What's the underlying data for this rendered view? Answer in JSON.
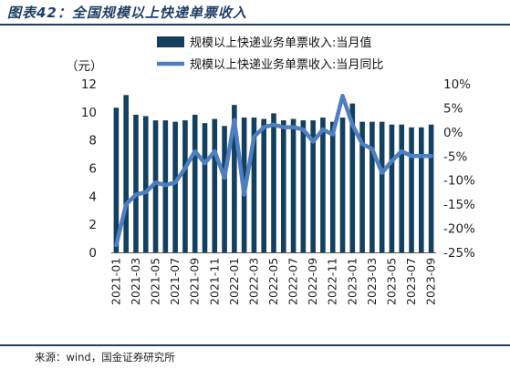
{
  "figure_title": "图表42：全国规模以上快递单票收入",
  "source": "来源：wind，国金证券研究所",
  "colors": {
    "bar": "#14405f",
    "line": "#4f7fc0",
    "frame": "#1f3f66"
  },
  "chart_data": {
    "type": "bar",
    "left_unit": "（元）",
    "ylim_left": [
      0,
      12
    ],
    "left_ticks": [
      0,
      2,
      4,
      6,
      8,
      10,
      12
    ],
    "ylim_right": [
      -25,
      10
    ],
    "right_ticks": [
      "10%",
      "5%",
      "0%",
      "-5%",
      "-10%",
      "-15%",
      "-20%",
      "-25%"
    ],
    "right_tick_values": [
      10,
      5,
      0,
      -5,
      -10,
      -15,
      -20,
      -25
    ],
    "grid": false,
    "legend_position": "top-center",
    "x_labels_shown": [
      "2021-01",
      "2021-03",
      "2021-05",
      "2021-07",
      "2021-09",
      "2021-11",
      "2022-01",
      "2022-03",
      "2022-05",
      "2022-07",
      "2022-09",
      "2022-11",
      "2023-01",
      "2023-03",
      "2023-05",
      "2023-07",
      "2023-09"
    ],
    "categories": [
      "2021-01",
      "2021-02",
      "2021-03",
      "2021-04",
      "2021-05",
      "2021-06",
      "2021-07",
      "2021-08",
      "2021-09",
      "2021-10",
      "2021-11",
      "2021-12",
      "2022-01",
      "2022-02",
      "2022-03",
      "2022-04",
      "2022-05",
      "2022-06",
      "2022-07",
      "2022-08",
      "2022-09",
      "2022-10",
      "2022-11",
      "2022-12",
      "2023-01",
      "2023-02",
      "2023-03",
      "2023-04",
      "2023-05",
      "2023-06",
      "2023-07",
      "2023-08",
      "2023-09"
    ],
    "series": [
      {
        "name": "规模以上快递业务单票收入:当月值",
        "type": "bar",
        "axis": "left",
        "values": [
          10.3,
          11.2,
          9.8,
          9.7,
          9.4,
          9.4,
          9.3,
          9.4,
          9.8,
          9.2,
          9.5,
          9.0,
          10.5,
          9.6,
          9.6,
          9.5,
          9.9,
          9.4,
          9.5,
          9.4,
          9.4,
          9.6,
          9.3,
          9.6,
          10.6,
          9.3,
          9.3,
          9.3,
          9.1,
          9.1,
          8.9,
          8.9,
          9.1
        ]
      },
      {
        "name": "规模以上快递业务单票收入:当月同比",
        "type": "line",
        "axis": "right",
        "values": [
          -23.5,
          -15.0,
          -13.0,
          -12.5,
          -10.5,
          -11.0,
          -10.5,
          -7.5,
          -4.0,
          -6.5,
          -4.0,
          -9.5,
          2.5,
          -13.0,
          -1.0,
          1.0,
          1.5,
          1.0,
          1.0,
          0.5,
          -2.0,
          0.5,
          -0.5,
          7.5,
          1.5,
          -2.5,
          -3.5,
          -8.5,
          -6.0,
          -4.0,
          -5.0,
          -5.0,
          -5.0
        ]
      }
    ]
  }
}
